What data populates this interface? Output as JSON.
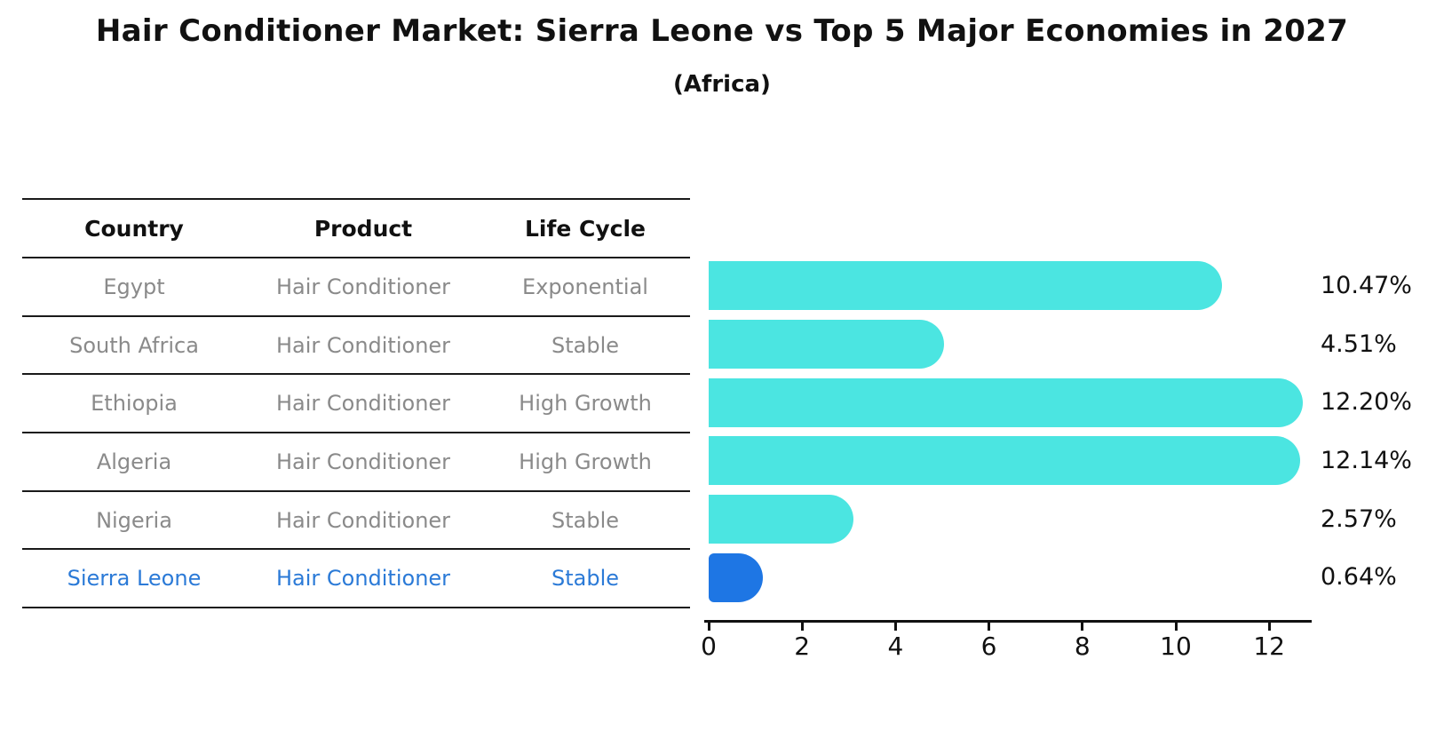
{
  "title": "Hair Conditioner Market: Sierra Leone vs Top 5 Major Economies in 2027",
  "subtitle": "(Africa)",
  "colors": {
    "bar": "#4BE5E1",
    "highlight_bar": "#1E76E4",
    "highlight_text": "#2B7AD7",
    "table_text": "#8A8A8A",
    "line": "#1A1A1A"
  },
  "table": {
    "headers": [
      "Country",
      "Product",
      "Life Cycle"
    ],
    "rows": [
      {
        "country": "Egypt",
        "product": "Hair Conditioner",
        "life_cycle": "Exponential",
        "highlight": false
      },
      {
        "country": "South Africa",
        "product": "Hair Conditioner",
        "life_cycle": "Stable",
        "highlight": false
      },
      {
        "country": "Ethiopia",
        "product": "Hair Conditioner",
        "life_cycle": "High Growth",
        "highlight": false
      },
      {
        "country": "Algeria",
        "product": "Hair Conditioner",
        "life_cycle": "High Growth",
        "highlight": false
      },
      {
        "country": "Nigeria",
        "product": "Hair Conditioner",
        "life_cycle": "Stable",
        "highlight": false
      },
      {
        "country": "Sierra Leone",
        "product": "Hair Conditioner",
        "life_cycle": "Stable",
        "highlight": true
      }
    ]
  },
  "chart_data": {
    "type": "bar",
    "orientation": "horizontal",
    "title": "Hair Conditioner Market: Sierra Leone vs Top 5 Major Economies in 2027",
    "subtitle": "(Africa)",
    "categories": [
      "Egypt",
      "South Africa",
      "Ethiopia",
      "Algeria",
      "Nigeria",
      "Sierra Leone"
    ],
    "values": [
      10.47,
      4.51,
      12.2,
      12.14,
      2.57,
      0.64
    ],
    "value_labels": [
      "10.47%",
      "4.51%",
      "12.20%",
      "12.14%",
      "2.57%",
      "0.64%"
    ],
    "xlabel": "",
    "ylabel": "",
    "x_ticks": [
      0,
      2,
      4,
      6,
      8,
      10,
      12
    ],
    "xlim": [
      0,
      12.9
    ],
    "grid": false,
    "legend": false,
    "bar_color": "#4BE5E1",
    "highlight_index": 5,
    "highlight_color": "#1E76E4"
  }
}
